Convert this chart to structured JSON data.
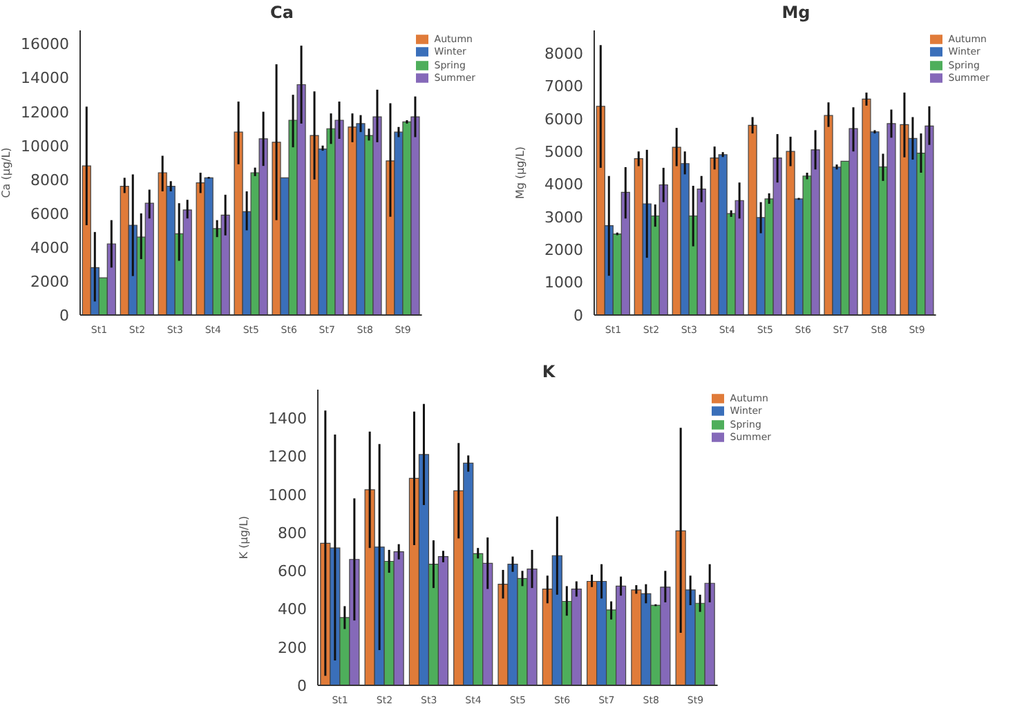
{
  "chart_data": [
    {
      "type": "bar",
      "title": "Ca",
      "ylabel": "Ca (μg/L)",
      "categories": [
        "St1",
        "St2",
        "St3",
        "St4",
        "St5",
        "St6",
        "St7",
        "St8",
        "St9"
      ],
      "ylim": [
        0,
        16800
      ],
      "yticks": [
        0,
        2000,
        4000,
        6000,
        8000,
        10000,
        12000,
        14000,
        16000
      ],
      "legend": "top right",
      "grid": false,
      "series": [
        {
          "name": "Autumn",
          "color": "#e07b39",
          "values": [
            8800,
            7600,
            8400,
            7800,
            10800,
            10200,
            10600,
            11100,
            9100
          ],
          "errors": [
            [
              5300,
              12300
            ],
            [
              7200,
              8100
            ],
            [
              7300,
              9400
            ],
            [
              7200,
              8400
            ],
            [
              8900,
              12600
            ],
            [
              5600,
              14800
            ],
            [
              8000,
              13200
            ],
            [
              10200,
              11900
            ],
            [
              5800,
              12500
            ]
          ]
        },
        {
          "name": "Winter",
          "color": "#3a6fba",
          "values": [
            2800,
            5300,
            7600,
            8100,
            6100,
            8100,
            9800,
            11300,
            10800
          ],
          "errors": [
            [
              800,
              4900
            ],
            [
              2300,
              8300
            ],
            [
              7300,
              7900
            ],
            [
              8050,
              8150
            ],
            [
              5000,
              7300
            ],
            null,
            [
              9700,
              10000
            ],
            [
              10800,
              11800
            ],
            [
              10500,
              11100
            ]
          ]
        },
        {
          "name": "Spring",
          "color": "#4eae5b",
          "values": [
            2200,
            4600,
            4800,
            5100,
            8400,
            11500,
            11000,
            10600,
            11400
          ],
          "errors": [
            null,
            [
              3300,
              6000
            ],
            [
              3200,
              6600
            ],
            [
              4600,
              5600
            ],
            [
              8200,
              8700
            ],
            [
              9900,
              13000
            ],
            [
              10100,
              11900
            ],
            [
              10300,
              11000
            ],
            [
              11300,
              11500
            ]
          ]
        },
        {
          "name": "Summer",
          "color": "#8569b9",
          "values": [
            4200,
            6600,
            6200,
            5900,
            10400,
            13600,
            11500,
            11700,
            11700
          ],
          "errors": [
            [
              2800,
              5600
            ],
            [
              5700,
              7400
            ],
            [
              5700,
              6800
            ],
            [
              4700,
              7100
            ],
            [
              8800,
              12000
            ],
            [
              11300,
              15900
            ],
            [
              10400,
              12600
            ],
            [
              10200,
              13300
            ],
            [
              10500,
              12900
            ]
          ]
        }
      ]
    },
    {
      "type": "bar",
      "title": "Mg",
      "ylabel": "Mg (μg/L)",
      "categories": [
        "St1",
        "St2",
        "St3",
        "St4",
        "St5",
        "St6",
        "St7",
        "St8",
        "St9"
      ],
      "ylim": [
        0,
        8700
      ],
      "yticks": [
        0,
        1000,
        2000,
        3000,
        4000,
        5000,
        6000,
        7000,
        8000
      ],
      "legend": "top right",
      "grid": false,
      "series": [
        {
          "name": "Autumn",
          "color": "#e07b39",
          "values": [
            6380,
            4780,
            5130,
            4800,
            5800,
            5000,
            6100,
            6600,
            5820
          ],
          "errors": [
            [
              4500,
              8250
            ],
            [
              4550,
              5000
            ],
            [
              4550,
              5720
            ],
            [
              4450,
              5150
            ],
            [
              5550,
              6050
            ],
            [
              4550,
              5450
            ],
            [
              5750,
              6500
            ],
            [
              6400,
              6800
            ],
            [
              4820,
              6800
            ]
          ]
        },
        {
          "name": "Winter",
          "color": "#3a6fba",
          "values": [
            2730,
            3400,
            4630,
            4900,
            2980,
            3550,
            4520,
            5600,
            5400
          ],
          "errors": [
            [
              1200,
              4250
            ],
            [
              1750,
              5050
            ],
            [
              4300,
              5000
            ],
            [
              4830,
              4980
            ],
            [
              2500,
              3450
            ],
            [
              3520,
              3580
            ],
            [
              4450,
              4600
            ],
            [
              5550,
              5650
            ],
            [
              4750,
              6050
            ]
          ]
        },
        {
          "name": "Spring",
          "color": "#4eae5b",
          "values": [
            2480,
            3030,
            3030,
            3100,
            3550,
            4250,
            4700,
            4530,
            4950
          ],
          "errors": [
            [
              2440,
              2520
            ],
            [
              2700,
              3380
            ],
            [
              2100,
              3950
            ],
            [
              3000,
              3200
            ],
            [
              3400,
              3720
            ],
            [
              4150,
              4350
            ],
            null,
            [
              4100,
              4930
            ],
            [
              4350,
              5550
            ]
          ]
        },
        {
          "name": "Summer",
          "color": "#8569b9",
          "values": [
            3750,
            3980,
            3850,
            3500,
            4800,
            5050,
            5700,
            5850,
            5780
          ],
          "errors": [
            [
              2950,
              4520
            ],
            [
              3450,
              4500
            ],
            [
              3450,
              4250
            ],
            [
              2950,
              4050
            ],
            [
              4050,
              5530
            ],
            [
              4450,
              5650
            ],
            [
              5000,
              6350
            ],
            [
              5420,
              6280
            ],
            [
              5200,
              6380
            ]
          ]
        }
      ]
    },
    {
      "type": "bar",
      "title": "K",
      "ylabel": "K (μg/L)",
      "categories": [
        "St1",
        "St2",
        "St3",
        "St4",
        "St5",
        "St6",
        "St7",
        "St8",
        "St9"
      ],
      "ylim": [
        0,
        1550
      ],
      "yticks": [
        0,
        200,
        400,
        600,
        800,
        1000,
        1200,
        1400
      ],
      "legend": "top right",
      "grid": false,
      "series": [
        {
          "name": "Autumn",
          "color": "#e07b39",
          "values": [
            745,
            1025,
            1085,
            1020,
            530,
            505,
            545,
            500,
            810
          ],
          "errors": [
            [
              50,
              1440
            ],
            [
              720,
              1330
            ],
            [
              735,
              1435
            ],
            [
              770,
              1270
            ],
            [
              455,
              605
            ],
            [
              430,
              575
            ],
            [
              515,
              580
            ],
            [
              480,
              525
            ],
            [
              275,
              1350
            ]
          ]
        },
        {
          "name": "Winter",
          "color": "#3a6fba",
          "values": [
            720,
            725,
            1210,
            1165,
            635,
            680,
            545,
            480,
            500
          ],
          "errors": [
            [
              130,
              1315
            ],
            [
              185,
              1265
            ],
            [
              945,
              1475
            ],
            [
              1120,
              1205
            ],
            [
              595,
              675
            ],
            [
              475,
              885
            ],
            [
              455,
              635
            ],
            [
              430,
              530
            ],
            [
              420,
              575
            ]
          ]
        },
        {
          "name": "Spring",
          "color": "#4eae5b",
          "values": [
            355,
            650,
            635,
            690,
            560,
            440,
            395,
            420,
            430
          ],
          "errors": [
            [
              295,
              415
            ],
            [
              590,
              710
            ],
            [
              510,
              760
            ],
            [
              665,
              720
            ],
            [
              520,
              600
            ],
            [
              365,
              520
            ],
            [
              345,
              440
            ],
            [
              415,
              425
            ],
            [
              385,
              475
            ]
          ]
        },
        {
          "name": "Summer",
          "color": "#8569b9",
          "values": [
            660,
            700,
            675,
            640,
            610,
            505,
            520,
            515,
            535
          ],
          "errors": [
            [
              340,
              980
            ],
            [
              660,
              740
            ],
            [
              645,
              705
            ],
            [
              505,
              775
            ],
            [
              510,
              710
            ],
            [
              465,
              545
            ],
            [
              470,
              570
            ],
            [
              435,
              600
            ],
            [
              435,
              635
            ]
          ]
        }
      ]
    }
  ]
}
